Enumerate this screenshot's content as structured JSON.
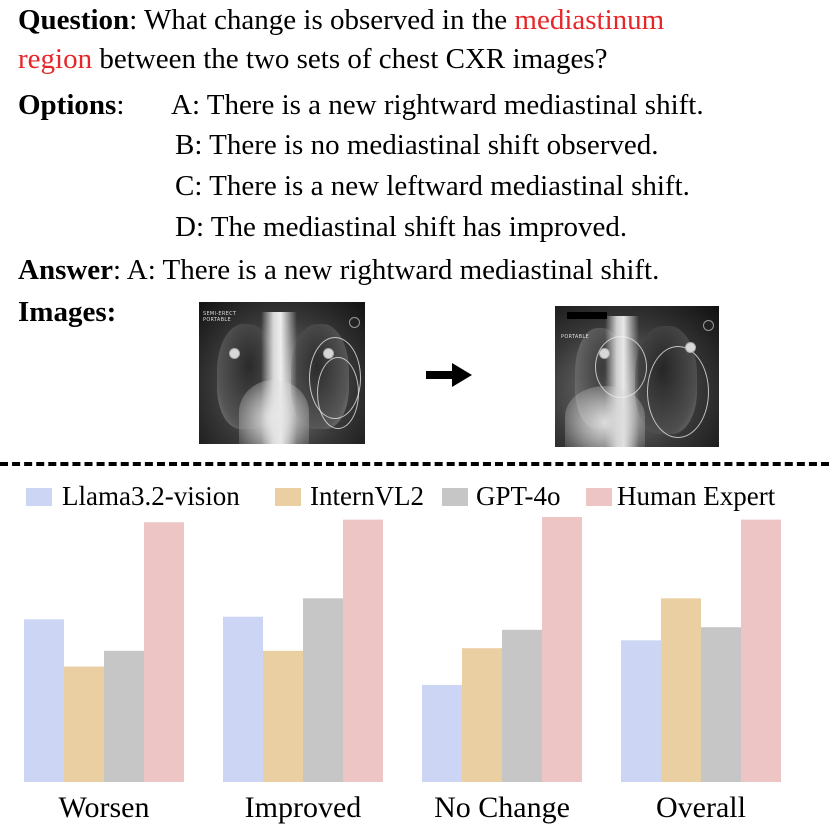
{
  "question": {
    "label": "Question",
    "text_before": ": What change is observed in the ",
    "highlight_part1": "mediastinum",
    "highlight_part2": "region",
    "text_after": " between the two sets of chest CXR images?"
  },
  "options": {
    "label": "Options",
    "colon": ":",
    "items": [
      "A: There is a new rightward mediastinal shift.",
      "B: There is no mediastinal shift observed.",
      "C: There is a new leftward mediastinal shift.",
      "D: The mediastinal shift has improved."
    ]
  },
  "answer": {
    "label": "Answer",
    "text": ": A: There is a new rightward mediastinal shift."
  },
  "images": {
    "label": "Images:",
    "left_xray_text": "SEMI-ERECT\nPORTABLE",
    "right_xray_text": "PORTABLE"
  },
  "chart_data": {
    "type": "bar",
    "categories": [
      "Worsen",
      "Improved",
      "No Change",
      "Overall"
    ],
    "series": [
      {
        "name": "Llama3.2-vision",
        "color": "#ccd5f4",
        "values": [
          62,
          63,
          37,
          54
        ]
      },
      {
        "name": "InternVL2",
        "color": "#e9cfa2",
        "values": [
          44,
          50,
          51,
          70
        ]
      },
      {
        "name": "GPT-4o",
        "color": "#c6c6c6",
        "values": [
          50,
          70,
          58,
          59
        ]
      },
      {
        "name": "Human Expert",
        "color": "#edc5c5",
        "values": [
          99,
          100,
          101,
          100
        ]
      }
    ],
    "title": "",
    "xlabel": "",
    "ylabel": "",
    "ylim": [
      0,
      101
    ],
    "grid": false,
    "legend": "top"
  }
}
